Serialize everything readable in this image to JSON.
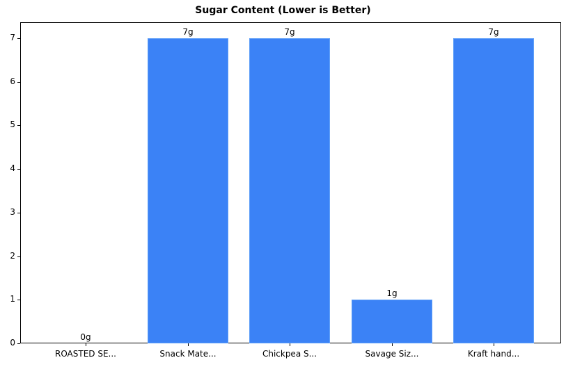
{
  "chart_data": {
    "type": "bar",
    "title": "Sugar Content (Lower is Better)",
    "xlabel": "",
    "ylabel": "",
    "categories": [
      "ROASTED SE...",
      "Snack Mate...",
      "Chickpea S...",
      "Savage Siz...",
      "Kraft hand..."
    ],
    "values": [
      0,
      7,
      7,
      1,
      7
    ],
    "data_labels": [
      "0g",
      "7g",
      "7g",
      "1g",
      "7g"
    ],
    "ylim": [
      0,
      7.35
    ],
    "yticks": [
      0,
      1,
      2,
      3,
      4,
      5,
      6,
      7
    ],
    "grid": false,
    "legend": null,
    "bar_color": "#3b82f6"
  }
}
